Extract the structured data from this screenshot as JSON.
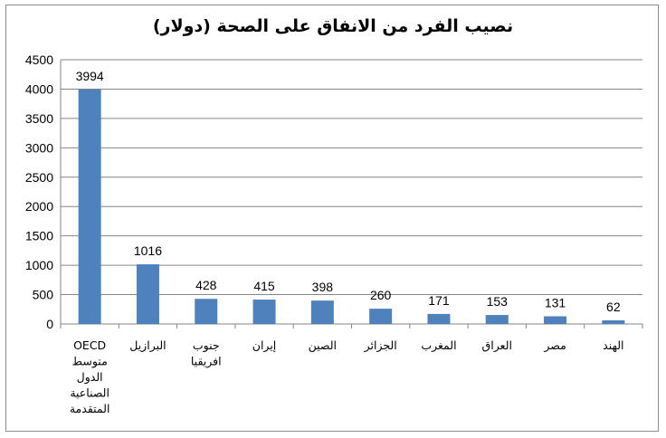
{
  "chart_data": {
    "type": "bar",
    "title": "نصيب الفرد من الانفاق على الصحة (دولار)",
    "categories": [
      [
        "OECD",
        "متوسط",
        "الدول",
        "الصناعية",
        "المتقدمة"
      ],
      [
        "البرازيل"
      ],
      [
        "جنوب",
        "افريقيا"
      ],
      [
        "إيران"
      ],
      [
        "الصين"
      ],
      [
        "الجزائر"
      ],
      [
        "المغرب"
      ],
      [
        "العراق"
      ],
      [
        "مصر"
      ],
      [
        "الهند"
      ]
    ],
    "values": [
      3994,
      1016,
      428,
      415,
      398,
      260,
      171,
      153,
      131,
      62
    ],
    "ylim": [
      0,
      4500
    ],
    "yticks": [
      0,
      500,
      1000,
      1500,
      2000,
      2500,
      3000,
      3500,
      4000,
      4500
    ],
    "grid": true,
    "bar_color": "#4f81bd",
    "grid_color": "#868686",
    "axis_color": "#868686"
  }
}
